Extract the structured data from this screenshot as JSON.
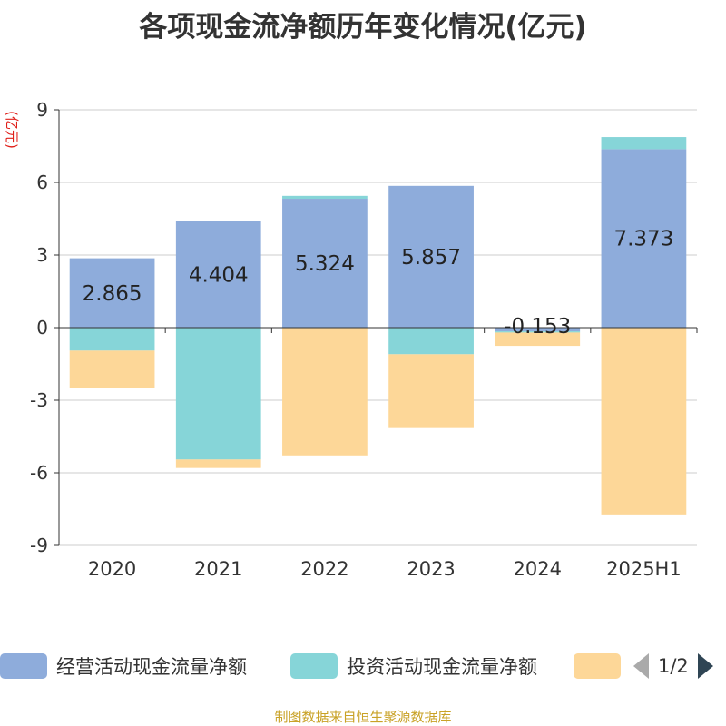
{
  "chart_data": {
    "type": "bar",
    "stacked": true,
    "title": "各项现金流净额历年变化情况(亿元)",
    "ylabel": "(亿元)",
    "categories": [
      "2020",
      "2021",
      "2022",
      "2023",
      "2024",
      "2025H1"
    ],
    "ylim": [
      -9,
      9
    ],
    "yticks": [
      9,
      6,
      3,
      0,
      -3,
      -6,
      -9
    ],
    "grid": true,
    "series": [
      {
        "name": "经营活动现金流量净额",
        "color": "#8eacdb",
        "values": [
          2.865,
          4.404,
          5.324,
          5.857,
          -0.153,
          7.373
        ],
        "labels": [
          "2.865",
          "4.404",
          "5.324",
          "5.857",
          "-0.153",
          "7.373"
        ]
      },
      {
        "name": "投资活动现金流量净额",
        "color": "#86d5d8",
        "values": [
          -0.95,
          -5.45,
          0.12,
          -1.1,
          -0.05,
          0.5
        ]
      },
      {
        "name": "",
        "color": "#fdd798",
        "values": [
          -1.55,
          -0.35,
          -5.28,
          -3.05,
          -0.55,
          -7.72
        ]
      }
    ],
    "legend": {
      "placement": "bottom",
      "page": "1/2"
    }
  },
  "source": "制图数据来自恒生聚源数据库"
}
